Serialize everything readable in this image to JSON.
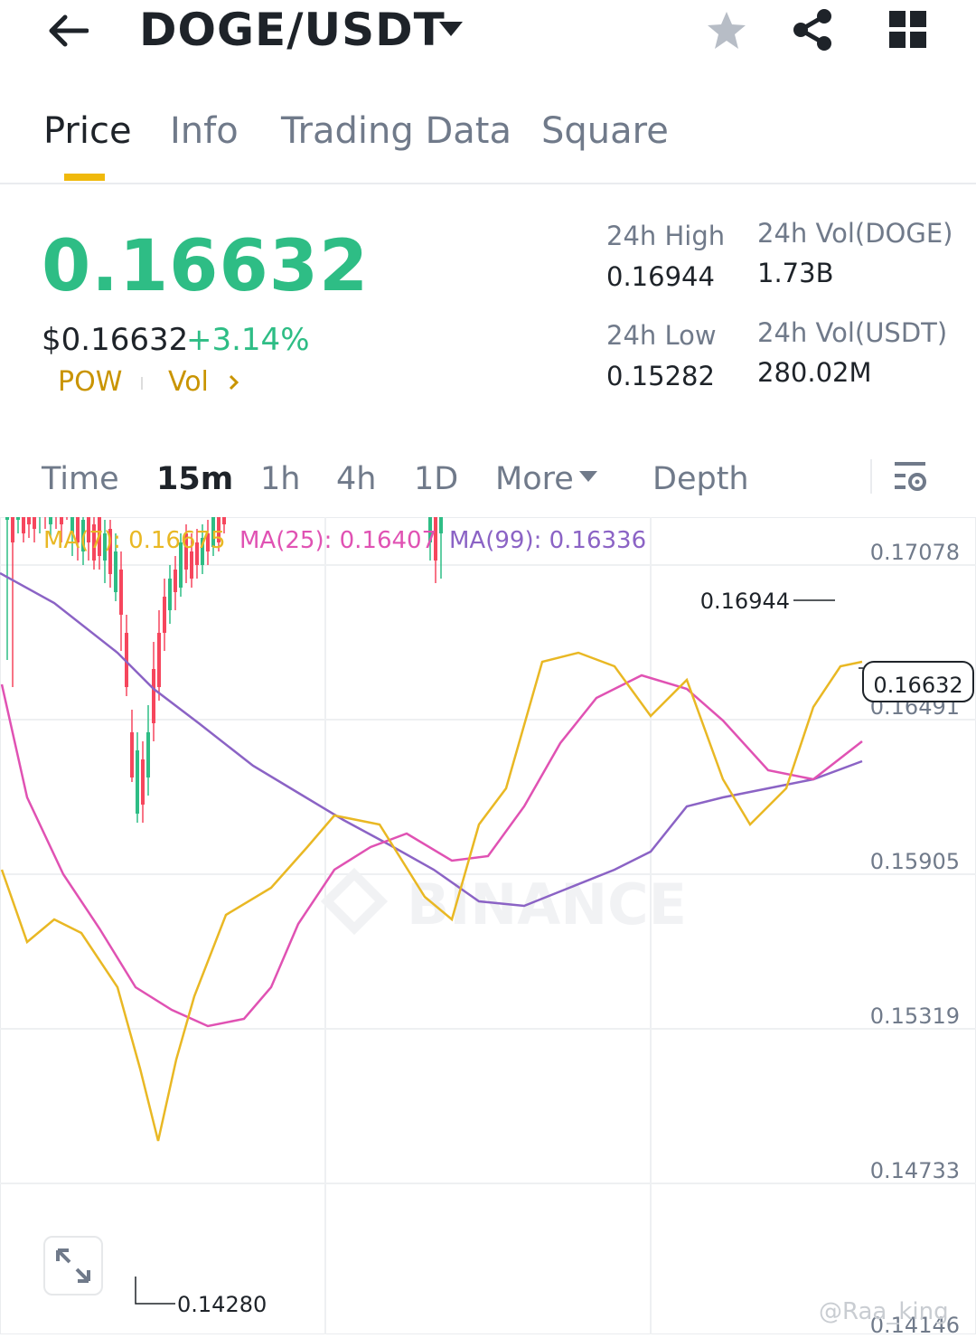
{
  "header": {
    "pair": "DOGE/USDT",
    "back_icon": "back-arrow-icon",
    "dropdown_icon": "caret-down-icon",
    "favorite_icon": "star-icon",
    "share_icon": "share-icon",
    "menu_icon": "grid-icon"
  },
  "tabs": [
    "Price",
    "Info",
    "Trading Data",
    "Square"
  ],
  "active_tab": "Price",
  "price": {
    "last": "0.16632",
    "usd": "$0.16632",
    "change": "+3.14%",
    "tag1": "POW",
    "tag2": "Vol",
    "high_label": "24h High",
    "high": "0.16944",
    "low_label": "24h Low",
    "low": "0.15282",
    "vol_base_label": "24h Vol(DOGE)",
    "vol_base": "1.73B",
    "vol_quote_label": "24h Vol(USDT)",
    "vol_quote": "280.02M"
  },
  "intervals": {
    "items": [
      "Time",
      "15m",
      "1h",
      "4h",
      "1D",
      "More",
      "Depth"
    ],
    "active": "15m",
    "settings_icon": "chart-settings-icon"
  },
  "indicators": {
    "ma7": "MA(7): 0.16675",
    "ma25": "MA(25): 0.16407",
    "ma99": "MA(99): 0.16336"
  },
  "colors": {
    "up": "#2ebd85",
    "down": "#f6465d",
    "accent": "#f0b90b",
    "ma7": "#e9b824",
    "ma25": "#e052b3",
    "ma99": "#8b63c5"
  },
  "chart_data": {
    "type": "candlestick",
    "interval": "15m",
    "y_ticks": [
      "0.17078",
      "0.16491",
      "0.15905",
      "0.15319",
      "0.14733",
      "0.14146"
    ],
    "ylim": [
      0.14146,
      0.17078
    ],
    "last_price_label": "0.16632",
    "high_marker": "0.16944",
    "low_marker": "0.14280",
    "watermark": "BINANCE"
  },
  "expand_icon": "expand-icon",
  "credit": "@Raa_king"
}
